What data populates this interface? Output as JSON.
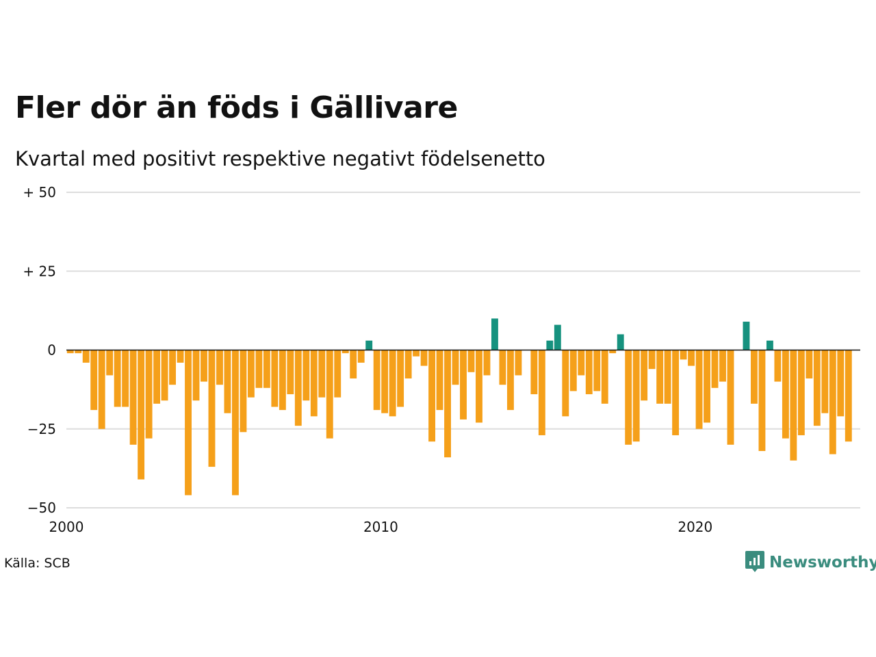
{
  "title": "Fler dör än föds i Gällivare",
  "subtitle": "Kvartal med positivt respektive negativt födelsenetto",
  "source": "Källa: SCB",
  "brand": {
    "name": "Newsworthy",
    "icon": "newsworthy-logo-icon"
  },
  "colors": {
    "negative": "#f5a01a",
    "positive": "#16927f",
    "grid": "#dddddd",
    "zero_line": "#111111"
  },
  "chart_data": {
    "type": "bar",
    "title": "Fler dör än föds i Gällivare",
    "subtitle": "Kvartal med positivt respektive negativt födelsenetto",
    "xlabel": "",
    "ylabel": "",
    "ylim": [
      -50,
      50
    ],
    "y_ticks": [
      {
        "value": 50,
        "label": "+ 50"
      },
      {
        "value": 25,
        "label": "+ 25"
      },
      {
        "value": 0,
        "label": "0"
      },
      {
        "value": -25,
        "label": "−25"
      },
      {
        "value": -50,
        "label": "−50"
      }
    ],
    "x_ticks": [
      {
        "value": 2000,
        "label": "2000"
      },
      {
        "value": 2010,
        "label": "2010"
      },
      {
        "value": 2020,
        "label": "2020"
      }
    ],
    "xlim": [
      2000,
      2025.25
    ],
    "grid": true,
    "x_start_year": 2000,
    "periods_per_year": 4,
    "values": [
      -1,
      -1,
      -4,
      -19,
      -25,
      -8,
      -18,
      -18,
      -30,
      -41,
      -28,
      -17,
      -16,
      -11,
      -4,
      -46,
      -16,
      -10,
      -37,
      -11,
      -20,
      -46,
      -26,
      -15,
      -12,
      -12,
      -18,
      -19,
      -14,
      -24,
      -16,
      -21,
      -15,
      -28,
      -15,
      -1,
      -9,
      -4,
      3,
      -19,
      -20,
      -21,
      -18,
      -9,
      -2,
      -5,
      -29,
      -19,
      -34,
      -11,
      -22,
      -7,
      -23,
      -8,
      10,
      -11,
      -19,
      -8,
      0,
      -14,
      -27,
      3,
      8,
      -21,
      -13,
      -8,
      -14,
      -13,
      -17,
      -1,
      5,
      -30,
      -29,
      -16,
      -6,
      -17,
      -17,
      -27,
      -3,
      -5,
      -25,
      -23,
      -12,
      -10,
      -30,
      0,
      9,
      -17,
      -32,
      3,
      -10,
      -28,
      -35,
      -27,
      -9,
      -24,
      -20,
      -33,
      -21,
      -29
    ]
  }
}
